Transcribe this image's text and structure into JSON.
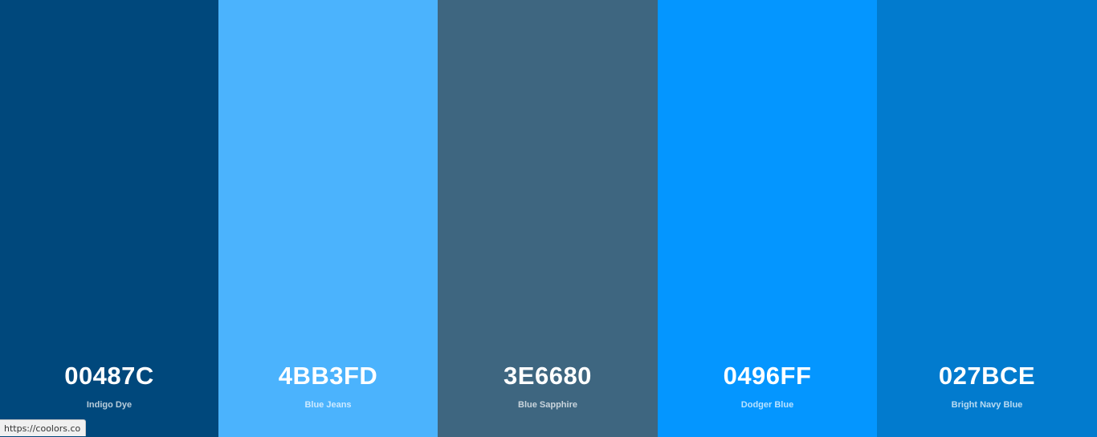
{
  "palette": {
    "swatches": [
      {
        "hex": "00487C",
        "name": "Indigo Dye",
        "color": "#00487C"
      },
      {
        "hex": "4BB3FD",
        "name": "Blue Jeans",
        "color": "#4BB3FD"
      },
      {
        "hex": "3E6680",
        "name": "Blue Sapphire",
        "color": "#3E6680"
      },
      {
        "hex": "0496FF",
        "name": "Dodger Blue",
        "color": "#0496FF"
      },
      {
        "hex": "027BCE",
        "name": "Bright Navy Blue",
        "color": "#027BCE"
      }
    ]
  },
  "status_bar": {
    "url": "https://coolors.co"
  }
}
